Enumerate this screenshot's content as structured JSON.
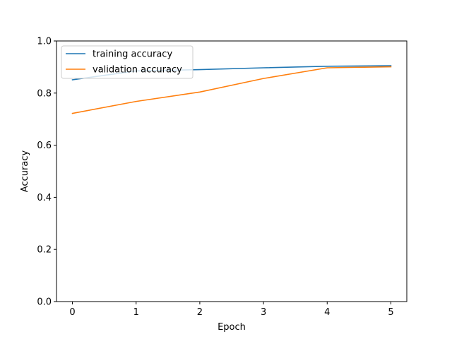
{
  "chart_data": {
    "type": "line",
    "xlabel": "Epoch",
    "ylabel": "Accuracy",
    "x": [
      0,
      1,
      2,
      3,
      4,
      5
    ],
    "xlim": [
      -0.25,
      5.25
    ],
    "ylim": [
      0,
      1
    ],
    "xticks": [
      0,
      1,
      2,
      3,
      4,
      5
    ],
    "yticks": [
      0,
      0.2,
      0.4,
      0.6,
      0.8,
      1
    ],
    "xtick_labels": [
      "0",
      "1",
      "2",
      "3",
      "4",
      "5"
    ],
    "ytick_labels": [
      "0.0",
      "0.2",
      "0.4",
      "0.6",
      "0.8",
      "1.0"
    ],
    "grid": false,
    "legend_position": "top-left",
    "series": [
      {
        "name": "training accuracy",
        "color": "#1f77b4",
        "values": [
          0.851,
          0.885,
          0.89,
          0.897,
          0.903,
          0.905
        ]
      },
      {
        "name": "validation accuracy",
        "color": "#ff7f0e",
        "values": [
          0.722,
          0.768,
          0.804,
          0.856,
          0.897,
          0.901
        ]
      }
    ]
  }
}
